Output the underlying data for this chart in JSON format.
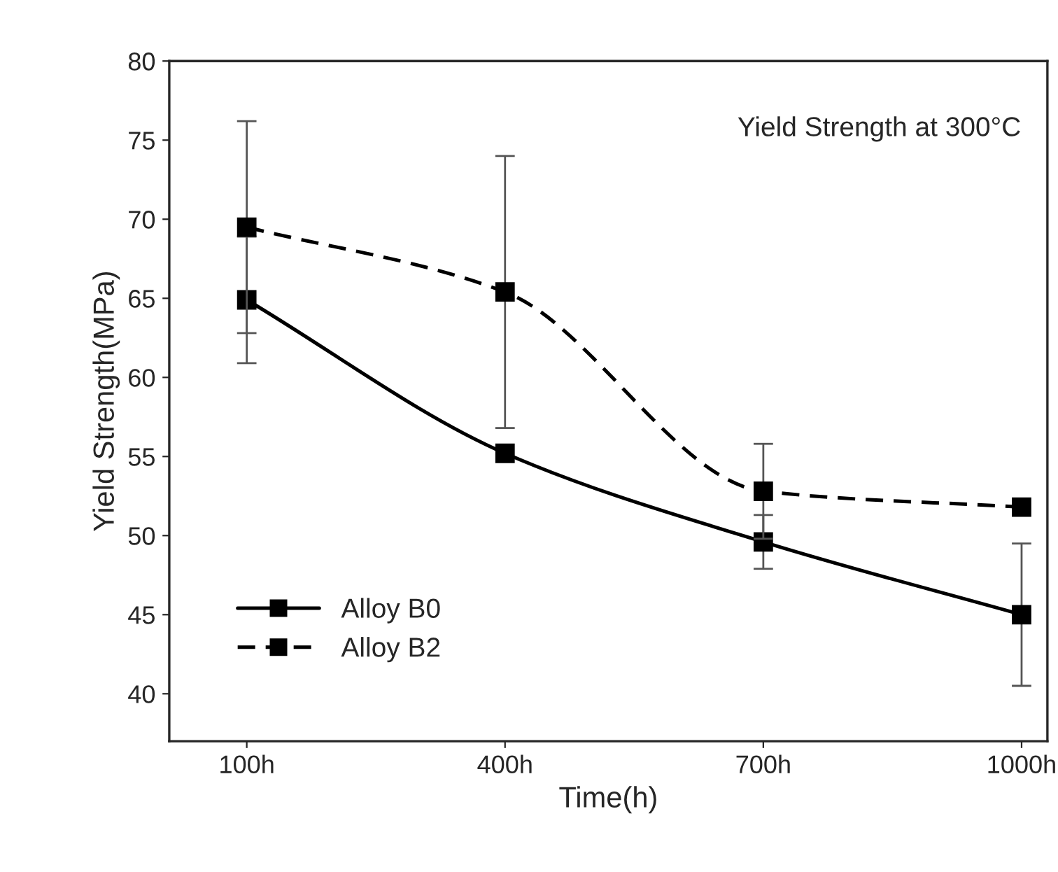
{
  "chart_data": {
    "type": "line",
    "xlabel": "Time(h)",
    "ylabel": "Yield Strength(MPa)",
    "annotations": [
      "Yield Strength at 300°C"
    ],
    "categories": [
      "100h",
      "400h",
      "700h",
      "1000h"
    ],
    "series": [
      {
        "name": "Alloy B0",
        "color": "#000000",
        "line_style": "solid",
        "values": [
          64.9,
          55.2,
          49.6,
          45.0
        ],
        "errors": [
          4.0,
          null,
          1.7,
          4.5
        ]
      },
      {
        "name": "Alloy B2",
        "color": "#000000",
        "line_style": "dashed",
        "values": [
          69.5,
          65.4,
          52.8,
          51.8
        ],
        "errors": [
          6.7,
          8.6,
          3.0,
          null
        ]
      }
    ],
    "ylim": [
      37,
      80
    ],
    "yticks": [
      40,
      45,
      50,
      55,
      60,
      65,
      70,
      75,
      80
    ],
    "marker": "square",
    "grid": false,
    "legend": "bottom left"
  }
}
